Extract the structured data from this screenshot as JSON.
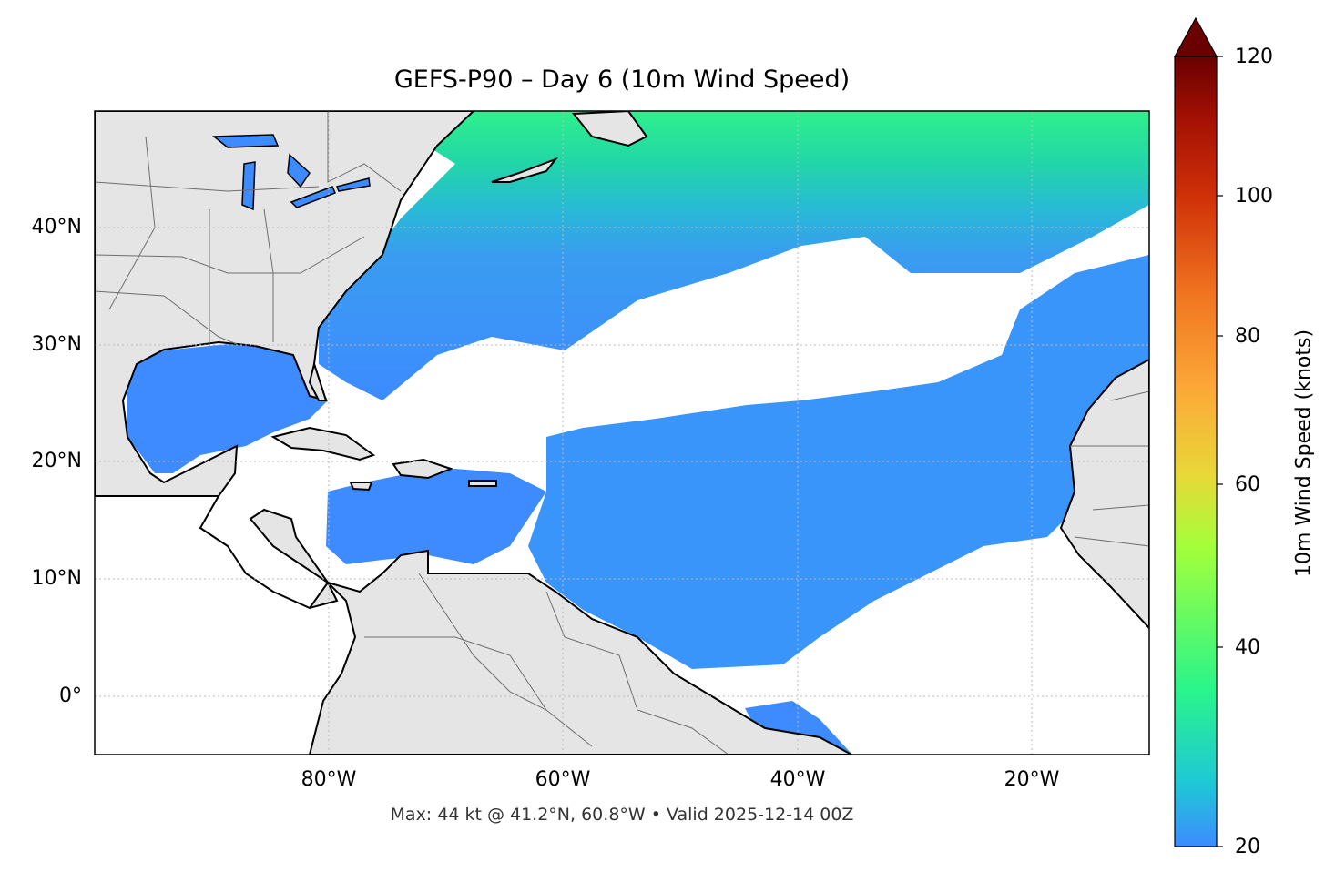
{
  "title": "GEFS-P90 – Day 6 (10m Wind Speed)",
  "footer": "Max: 44 kt @ 41.2°N, 60.8°W • Valid 2025-12-14 00Z",
  "colors": {
    "land": "#e5e5e5",
    "coast": "#000000",
    "borders": "#6e6e6e",
    "wind_low": "#3d8bff",
    "wind_high": "#2af58a"
  },
  "map": {
    "lon_range": [
      -100,
      -10
    ],
    "lat_range": [
      -5,
      50
    ],
    "lat_ticks": [
      {
        "value": 40,
        "label": "40°N"
      },
      {
        "value": 30,
        "label": "30°N"
      },
      {
        "value": 20,
        "label": "20°N"
      },
      {
        "value": 10,
        "label": "10°N"
      },
      {
        "value": 0,
        "label": "0°"
      }
    ],
    "lon_ticks": [
      {
        "value": -80,
        "label": "80°W"
      },
      {
        "value": -60,
        "label": "60°W"
      },
      {
        "value": -40,
        "label": "40°W"
      },
      {
        "value": -20,
        "label": "20°W"
      }
    ],
    "gridlines": "dotted",
    "max_wind": {
      "value": 44,
      "unit": "kt",
      "lat": 41.2,
      "lon": -60.8
    },
    "valid": "2025-12-14 00Z"
  },
  "colorbar": {
    "label": "10m Wind Speed (knots)",
    "min": 20,
    "max": 120,
    "ticks": [
      {
        "value": 120,
        "label": "120"
      },
      {
        "value": 100,
        "label": "100"
      },
      {
        "value": 80,
        "label": "80"
      },
      {
        "value": 60,
        "label": "60"
      },
      {
        "value": 40,
        "label": "40"
      },
      {
        "value": 20,
        "label": "20"
      }
    ],
    "extend": "max",
    "colormap": [
      "#3d8bff",
      "#1ec8d6",
      "#2af58a",
      "#a4ff3a",
      "#e8d838",
      "#fca838",
      "#f07420",
      "#d03208",
      "#a41004",
      "#6a0000"
    ]
  }
}
